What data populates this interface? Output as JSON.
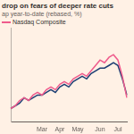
{
  "chart_data": {
    "type": "line",
    "title": "drop on fears of deeper rate cuts",
    "subtitle": "ap year-to-date (rebased, %)",
    "categories": [
      null,
      null,
      null,
      null,
      null,
      null,
      null,
      "Mar",
      null,
      null,
      null,
      "Apr",
      null,
      null,
      null,
      "May",
      null,
      null,
      null,
      null,
      "Jun",
      null,
      null,
      null,
      "Jul",
      null,
      null
    ],
    "series": [
      {
        "name": "Nasdaq Composite",
        "color": "#ef5b8c",
        "values": [
          0,
          1,
          3,
          4,
          3,
          5,
          6,
          5,
          7,
          8,
          7,
          9,
          10,
          9,
          11,
          12,
          13,
          12,
          14,
          16,
          18,
          17,
          19,
          20,
          18,
          12,
          4
        ]
      },
      {
        "color": "#1d3f73",
        "values": [
          0,
          1,
          2,
          4,
          3,
          4,
          5,
          5,
          6,
          7,
          6,
          8,
          9,
          8,
          10,
          11,
          12,
          11,
          13,
          14,
          15,
          15,
          16,
          17,
          16,
          11,
          5
        ]
      }
    ],
    "ylim": [
      -5,
      30
    ],
    "grid": false,
    "legend": "top-left",
    "tick_labels": "x"
  }
}
